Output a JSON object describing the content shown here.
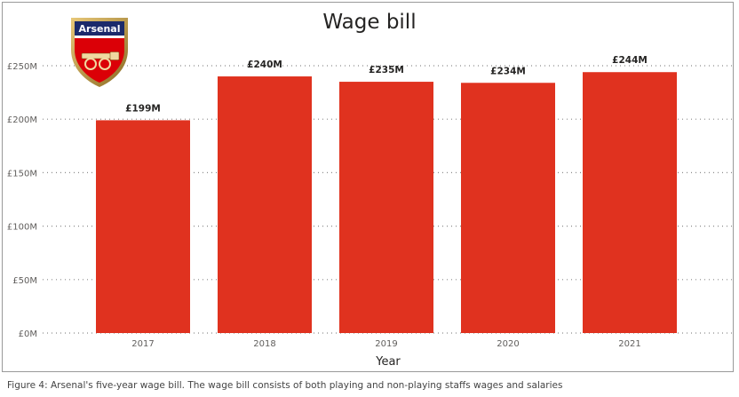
{
  "chart_data": {
    "type": "bar",
    "title": "Wage bill",
    "xlabel": "Year",
    "ylabel": "",
    "categories": [
      "2017",
      "2018",
      "2019",
      "2020",
      "2021"
    ],
    "values": [
      199,
      240,
      235,
      234,
      244
    ],
    "data_labels": [
      "£199M",
      "£240M",
      "£235M",
      "£234M",
      "£244M"
    ],
    "yticks": [
      0,
      50,
      100,
      150,
      200,
      250
    ],
    "ytick_labels": [
      "£0M",
      "£50M",
      "£100M",
      "£150M",
      "£200M",
      "£250M"
    ],
    "ylim": [
      0,
      250
    ],
    "grid": "dotted horizontal",
    "bar_color": "#e0321f"
  },
  "logo": {
    "text": "Arsenal",
    "colors": {
      "red": "#db0007",
      "navy": "#1b2a6b",
      "gold": "#c9a24a"
    }
  },
  "caption": "Figure 4: Arsenal's five-year wage bill. The wage bill consists of both playing and non-playing staffs wages and salaries"
}
